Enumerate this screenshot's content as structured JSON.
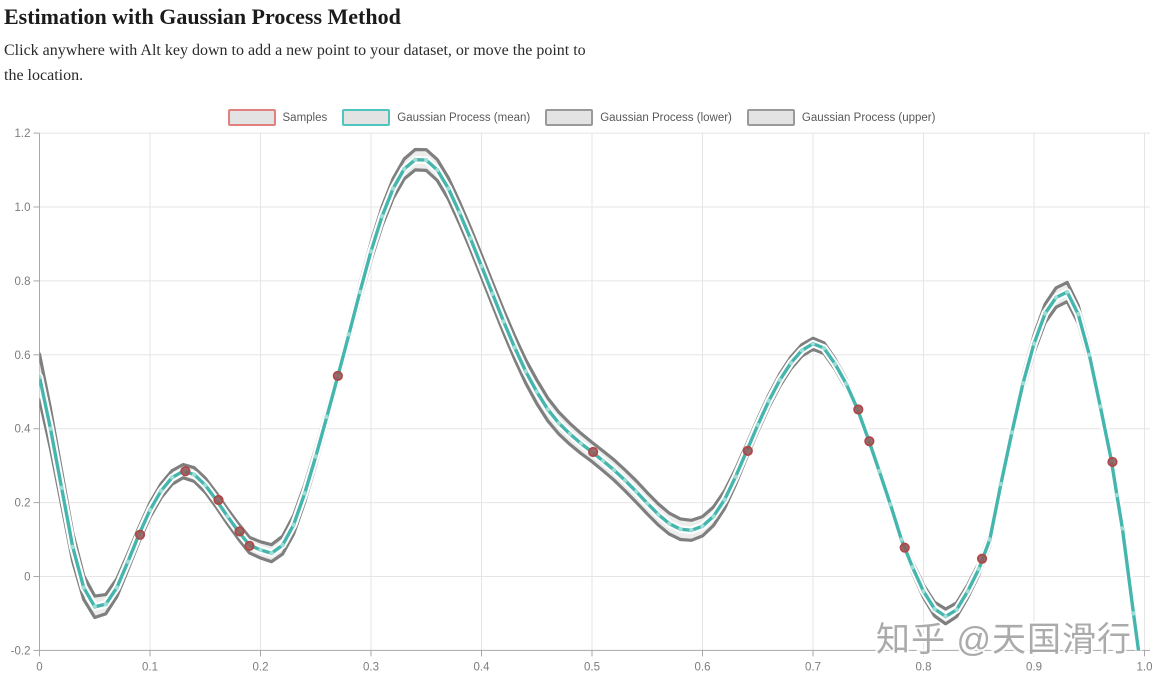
{
  "header": {
    "title": "Estimation with Gaussian Process Method",
    "subtitle": "Click anywhere with Alt key down to add a new point to your dataset, or move the point to the location."
  },
  "legend": {
    "items": [
      {
        "label": "Samples",
        "color": "#e27f7f"
      },
      {
        "label": "Gaussian Process (mean)",
        "color": "#4ec6bd"
      },
      {
        "label": "Gaussian Process (lower)",
        "color": "#9a9a9a"
      },
      {
        "label": "Gaussian Process (upper)",
        "color": "#9a9a9a"
      }
    ],
    "swatch_fill": "#e3e3e3"
  },
  "watermark": "知乎 @天国滑行",
  "colors": {
    "mean_line": "#45b6ae",
    "mean_dot": "#a0dcd6",
    "band_line": "#7f7f7f",
    "band_fill": "#ededed",
    "mean_halo": "#ffffff",
    "sample_fill": "#8c5656",
    "sample_stroke": "#b04848",
    "grid": "#e5e5e5",
    "axis": "#a8a8a8",
    "tick_text": "#7d7d7d",
    "watermark_text": "#a3a3a3"
  },
  "chart_data": {
    "type": "line",
    "title": "",
    "xlabel": "",
    "ylabel": "",
    "xlim": [
      0,
      1.0
    ],
    "ylim": [
      -0.2,
      1.2
    ],
    "grid": true,
    "legend_position": "top-center",
    "x_ticks": [
      0,
      0.1,
      0.2,
      0.3,
      0.4,
      0.5,
      0.6,
      0.7,
      0.8,
      0.9,
      1.0
    ],
    "x_tick_labels": [
      "0",
      "0.1",
      "0.2",
      "0.3",
      "0.4",
      "0.5",
      "0.6",
      "0.7",
      "0.8",
      "0.9",
      "1.0"
    ],
    "y_ticks": [
      -0.2,
      0,
      0.2,
      0.4,
      0.6,
      0.8,
      1.0,
      1.2
    ],
    "y_tick_labels": [
      "-0.2",
      "0",
      "0.2",
      "0.4",
      "0.6",
      "0.8",
      "1.0",
      "1.2"
    ],
    "series": [
      {
        "name": "Gaussian Process (mean)",
        "points": [
          [
            0,
            0.54
          ],
          [
            0.01,
            0.4
          ],
          [
            0.02,
            0.24
          ],
          [
            0.03,
            0.08
          ],
          [
            0.04,
            -0.03
          ],
          [
            0.05,
            -0.082
          ],
          [
            0.06,
            -0.075
          ],
          [
            0.07,
            -0.03
          ],
          [
            0.08,
            0.04
          ],
          [
            0.09,
            0.113
          ],
          [
            0.1,
            0.18
          ],
          [
            0.11,
            0.232
          ],
          [
            0.12,
            0.268
          ],
          [
            0.13,
            0.285
          ],
          [
            0.14,
            0.276
          ],
          [
            0.15,
            0.247
          ],
          [
            0.16,
            0.207
          ],
          [
            0.17,
            0.163
          ],
          [
            0.18,
            0.122
          ],
          [
            0.19,
            0.085
          ],
          [
            0.2,
            0.072
          ],
          [
            0.21,
            0.063
          ],
          [
            0.22,
            0.085
          ],
          [
            0.23,
            0.14
          ],
          [
            0.24,
            0.225
          ],
          [
            0.25,
            0.325
          ],
          [
            0.26,
            0.432
          ],
          [
            0.27,
            0.543
          ],
          [
            0.28,
            0.655
          ],
          [
            0.29,
            0.77
          ],
          [
            0.3,
            0.88
          ],
          [
            0.31,
            0.975
          ],
          [
            0.32,
            1.05
          ],
          [
            0.33,
            1.103
          ],
          [
            0.34,
            1.128
          ],
          [
            0.35,
            1.127
          ],
          [
            0.36,
            1.1
          ],
          [
            0.37,
            1.05
          ],
          [
            0.38,
            0.985
          ],
          [
            0.39,
            0.915
          ],
          [
            0.4,
            0.84
          ],
          [
            0.41,
            0.765
          ],
          [
            0.42,
            0.69
          ],
          [
            0.43,
            0.62
          ],
          [
            0.44,
            0.555
          ],
          [
            0.45,
            0.5
          ],
          [
            0.46,
            0.452
          ],
          [
            0.47,
            0.415
          ],
          [
            0.48,
            0.386
          ],
          [
            0.49,
            0.36
          ],
          [
            0.5,
            0.337
          ],
          [
            0.51,
            0.313
          ],
          [
            0.52,
            0.288
          ],
          [
            0.53,
            0.26
          ],
          [
            0.54,
            0.23
          ],
          [
            0.55,
            0.198
          ],
          [
            0.56,
            0.168
          ],
          [
            0.57,
            0.143
          ],
          [
            0.58,
            0.128
          ],
          [
            0.59,
            0.125
          ],
          [
            0.6,
            0.136
          ],
          [
            0.61,
            0.163
          ],
          [
            0.62,
            0.208
          ],
          [
            0.63,
            0.27
          ],
          [
            0.64,
            0.34
          ],
          [
            0.65,
            0.41
          ],
          [
            0.66,
            0.475
          ],
          [
            0.67,
            0.532
          ],
          [
            0.68,
            0.578
          ],
          [
            0.69,
            0.612
          ],
          [
            0.7,
            0.63
          ],
          [
            0.71,
            0.618
          ],
          [
            0.72,
            0.575
          ],
          [
            0.73,
            0.522
          ],
          [
            0.74,
            0.455
          ],
          [
            0.75,
            0.372
          ],
          [
            0.76,
            0.285
          ],
          [
            0.77,
            0.195
          ],
          [
            0.78,
            0.1
          ],
          [
            0.79,
            0.025
          ],
          [
            0.8,
            -0.04
          ],
          [
            0.81,
            -0.088
          ],
          [
            0.82,
            -0.108
          ],
          [
            0.83,
            -0.09
          ],
          [
            0.84,
            -0.04
          ],
          [
            0.85,
            0.02
          ],
          [
            0.86,
            0.1
          ],
          [
            0.87,
            0.25
          ],
          [
            0.88,
            0.39
          ],
          [
            0.89,
            0.523
          ],
          [
            0.9,
            0.63
          ],
          [
            0.91,
            0.712
          ],
          [
            0.92,
            0.755
          ],
          [
            0.93,
            0.77
          ],
          [
            0.94,
            0.71
          ],
          [
            0.95,
            0.6
          ],
          [
            0.96,
            0.46
          ],
          [
            0.97,
            0.315
          ],
          [
            0.975,
            0.22
          ],
          [
            0.98,
            0.13
          ],
          [
            0.99,
            -0.1
          ],
          [
            0.995,
            -0.21
          ]
        ]
      },
      {
        "name": "Samples",
        "points": [
          [
            0.091,
            0.113
          ],
          [
            0.132,
            0.285
          ],
          [
            0.162,
            0.207
          ],
          [
            0.181,
            0.122
          ],
          [
            0.19,
            0.083
          ],
          [
            0.27,
            0.543
          ],
          [
            0.501,
            0.337
          ],
          [
            0.641,
            0.34
          ],
          [
            0.741,
            0.452
          ],
          [
            0.751,
            0.366
          ],
          [
            0.783,
            0.078
          ],
          [
            0.853,
            0.048
          ],
          [
            0.971,
            0.31
          ]
        ]
      },
      {
        "name": "confidence_band_halfwidth",
        "points": [
          [
            0,
            0.062
          ],
          [
            0.02,
            0.046
          ],
          [
            0.04,
            0.032
          ],
          [
            0.06,
            0.026
          ],
          [
            0.09,
            0.02
          ],
          [
            0.13,
            0.018
          ],
          [
            0.19,
            0.021
          ],
          [
            0.23,
            0.025
          ],
          [
            0.27,
            0.02
          ],
          [
            0.31,
            0.026
          ],
          [
            0.35,
            0.028
          ],
          [
            0.4,
            0.03
          ],
          [
            0.45,
            0.032
          ],
          [
            0.5,
            0.026
          ],
          [
            0.54,
            0.029
          ],
          [
            0.58,
            0.028
          ],
          [
            0.62,
            0.024
          ],
          [
            0.64,
            0.018
          ],
          [
            0.7,
            0.015
          ],
          [
            0.74,
            0.013
          ],
          [
            0.78,
            0.014
          ],
          [
            0.82,
            0.02
          ],
          [
            0.85,
            0.016
          ],
          [
            0.89,
            0.022
          ],
          [
            0.925,
            0.027
          ],
          [
            0.95,
            0.022
          ],
          [
            0.97,
            0.016
          ],
          [
            0.995,
            0.012
          ]
        ]
      }
    ]
  }
}
